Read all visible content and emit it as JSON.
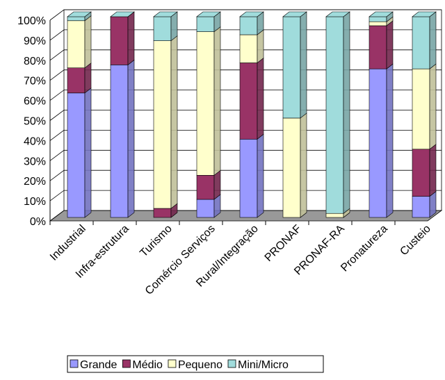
{
  "chart_data": {
    "type": "stacked_bar_3d",
    "categories": [
      "Industrial",
      "Infra-estrutura",
      "Turismo",
      "Comércio Serviços",
      "Rural/Integração",
      "PRONAF",
      "PRONAF-RA",
      "Pronatureza",
      "Custeio"
    ],
    "series": [
      {
        "name": "Grande",
        "color": "#9999FF",
        "values": [
          62,
          76,
          0,
          9,
          39,
          0,
          0,
          74,
          10.5
        ]
      },
      {
        "name": "Médio",
        "color": "#993366",
        "values": [
          12.5,
          24,
          4.5,
          12,
          38,
          0,
          0,
          21.5,
          23.5
        ]
      },
      {
        "name": "Pequeno",
        "color": "#FFFFCC",
        "values": [
          23.5,
          0,
          83.5,
          71.5,
          14,
          49.5,
          2,
          2,
          40
        ]
      },
      {
        "name": "Mini/Micro",
        "color": "#A0DCDC",
        "values": [
          2,
          0,
          12,
          7.5,
          9,
          50.5,
          98,
          2.5,
          26
        ]
      }
    ],
    "ylim": [
      0,
      100
    ],
    "yticks": [
      {
        "value": 0,
        "label": "0%"
      },
      {
        "value": 10,
        "label": "10%"
      },
      {
        "value": 20,
        "label": "20%"
      },
      {
        "value": 30,
        "label": "30%"
      },
      {
        "value": 40,
        "label": "40%"
      },
      {
        "value": 50,
        "label": "50%"
      },
      {
        "value": 60,
        "label": "60%"
      },
      {
        "value": 70,
        "label": "70%"
      },
      {
        "value": 80,
        "label": "80%"
      },
      {
        "value": 90,
        "label": "90%"
      },
      {
        "value": 100,
        "label": "100%"
      }
    ],
    "grid": true
  }
}
